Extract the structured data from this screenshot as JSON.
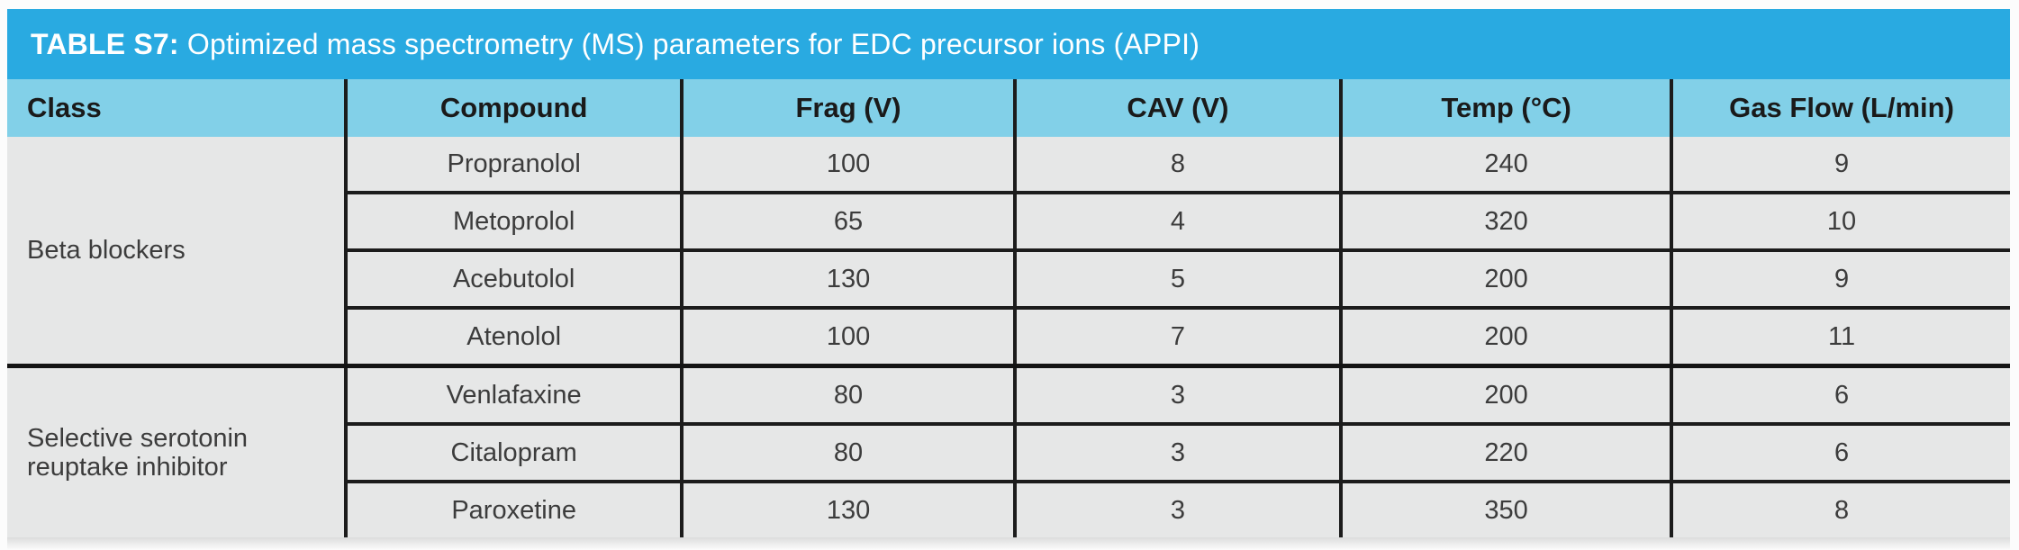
{
  "title": {
    "label": "TABLE S7:",
    "rest": " Optimized mass spectrometry (MS) parameters for EDC precursor ions (APPI)"
  },
  "colors": {
    "title_bar_bg": "#29AAE1",
    "title_text": "#FFFFFF",
    "header_bg": "#82D0E8",
    "header_text": "#1A1A1A",
    "row_bg": "#E6E7E7",
    "cell_text": "#3C3C3C",
    "grid_line": "#1C1C1C"
  },
  "table": {
    "columns": [
      {
        "key": "class",
        "label": "Class"
      },
      {
        "key": "compound",
        "label": "Compound"
      },
      {
        "key": "frag",
        "label": "Frag (V)"
      },
      {
        "key": "cav",
        "label": "CAV (V)"
      },
      {
        "key": "temp",
        "label": "Temp (°C)"
      },
      {
        "key": "gas_flow",
        "label": "Gas Flow (L/min)"
      }
    ],
    "groups": [
      {
        "class": "Beta blockers",
        "rows": [
          {
            "compound": "Propranolol",
            "frag": "100",
            "cav": "8",
            "temp": "240",
            "gas_flow": "9"
          },
          {
            "compound": "Metoprolol",
            "frag": "65",
            "cav": "4",
            "temp": "320",
            "gas_flow": "10"
          },
          {
            "compound": "Acebutolol",
            "frag": "130",
            "cav": "5",
            "temp": "200",
            "gas_flow": "9"
          },
          {
            "compound": "Atenolol",
            "frag": "100",
            "cav": "7",
            "temp": "200",
            "gas_flow": "11"
          }
        ]
      },
      {
        "class": "Selective serotonin reuptake inhibitor",
        "rows": [
          {
            "compound": "Venlafaxine",
            "frag": "80",
            "cav": "3",
            "temp": "200",
            "gas_flow": "6"
          },
          {
            "compound": "Citalopram",
            "frag": "80",
            "cav": "3",
            "temp": "220",
            "gas_flow": "6"
          },
          {
            "compound": "Paroxetine",
            "frag": "130",
            "cav": "3",
            "temp": "350",
            "gas_flow": "8"
          }
        ]
      }
    ]
  }
}
